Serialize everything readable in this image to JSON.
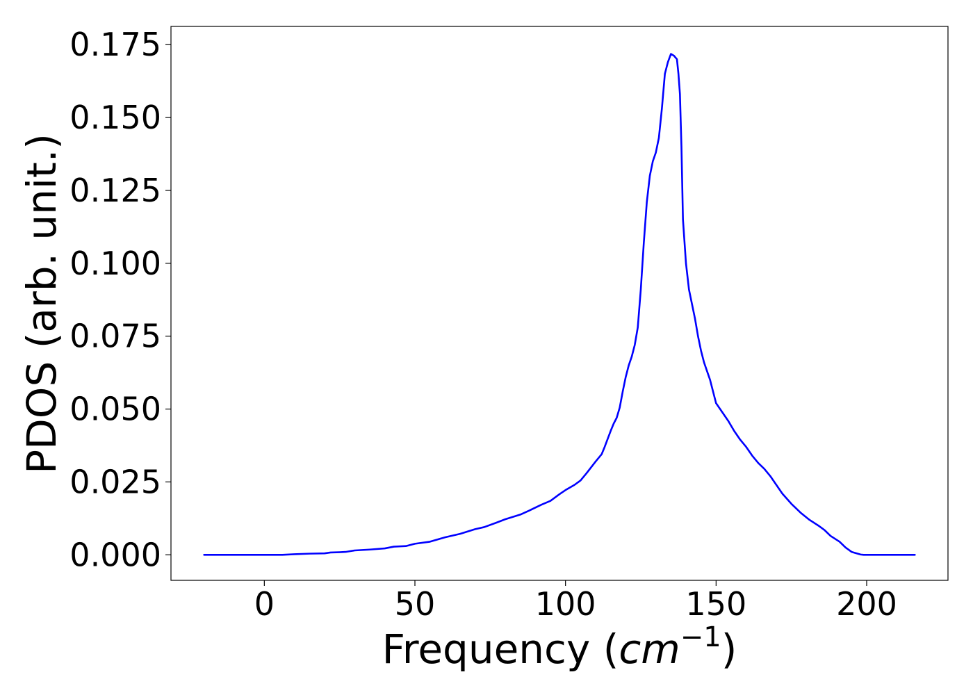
{
  "chart_data": {
    "type": "line",
    "title": "",
    "xlabel": {
      "text": "Frequency (",
      "unit": "cm",
      "exponent": "−1",
      "close": ")"
    },
    "ylabel": "PDOS (arb. unit.)",
    "xlim": [
      -31,
      227
    ],
    "ylim": [
      -0.00875,
      0.18125
    ],
    "xticks": [
      0,
      50,
      100,
      150,
      200
    ],
    "xtick_labels": [
      "0",
      "50",
      "100",
      "150",
      "200"
    ],
    "yticks": [
      0.0,
      0.025,
      0.05,
      0.075,
      0.1,
      0.125,
      0.15,
      0.175
    ],
    "ytick_labels": [
      "0.000",
      "0.025",
      "0.050",
      "0.075",
      "0.100",
      "0.125",
      "0.150",
      "0.175"
    ],
    "grid": false,
    "legend": "none",
    "series": [
      {
        "color": "#0000ff",
        "x": [
          -20,
          -10,
          0,
          6,
          10,
          15,
          20,
          22,
          25,
          27,
          30,
          35,
          40,
          43,
          47,
          50,
          55,
          60,
          65,
          70,
          73,
          77,
          80,
          85,
          88,
          92,
          95,
          98,
          100,
          103,
          105,
          107,
          110,
          112,
          113,
          115,
          116,
          117,
          118,
          119,
          120,
          121,
          122,
          123,
          124,
          125,
          126,
          127,
          128,
          129,
          130,
          131,
          132,
          133,
          134,
          135,
          136,
          137,
          137.5,
          138,
          138.5,
          139,
          140,
          141,
          142,
          143,
          144,
          145,
          146,
          147,
          148,
          149,
          150,
          152,
          154,
          156,
          158,
          160,
          162,
          164,
          166,
          168,
          170,
          172,
          175,
          178,
          181,
          184,
          186,
          188,
          191,
          193,
          195,
          197,
          198,
          199,
          200,
          202,
          205,
          210,
          216
        ],
        "y": [
          0.0,
          0.0,
          0.0,
          0.0,
          0.0002,
          0.0004,
          0.0005,
          0.0008,
          0.0009,
          0.001,
          0.0015,
          0.0018,
          0.0022,
          0.0028,
          0.003,
          0.0038,
          0.0045,
          0.006,
          0.0072,
          0.0088,
          0.0095,
          0.011,
          0.0122,
          0.0138,
          0.0152,
          0.0172,
          0.0185,
          0.0208,
          0.0222,
          0.024,
          0.0255,
          0.028,
          0.032,
          0.0345,
          0.037,
          0.0425,
          0.045,
          0.047,
          0.0505,
          0.056,
          0.061,
          0.065,
          0.068,
          0.072,
          0.078,
          0.091,
          0.107,
          0.121,
          0.13,
          0.135,
          0.138,
          0.143,
          0.153,
          0.165,
          0.169,
          0.1718,
          0.1712,
          0.17,
          0.165,
          0.158,
          0.14,
          0.115,
          0.1,
          0.091,
          0.086,
          0.081,
          0.075,
          0.07,
          0.066,
          0.063,
          0.06,
          0.056,
          0.052,
          0.049,
          0.046,
          0.0425,
          0.0395,
          0.037,
          0.034,
          0.0315,
          0.0295,
          0.027,
          0.024,
          0.021,
          0.0175,
          0.0145,
          0.012,
          0.01,
          0.0085,
          0.0065,
          0.0045,
          0.0025,
          0.001,
          0.0004,
          0.0001,
          0.0,
          0.0,
          0.0,
          0.0,
          0.0,
          0.0
        ]
      }
    ]
  }
}
